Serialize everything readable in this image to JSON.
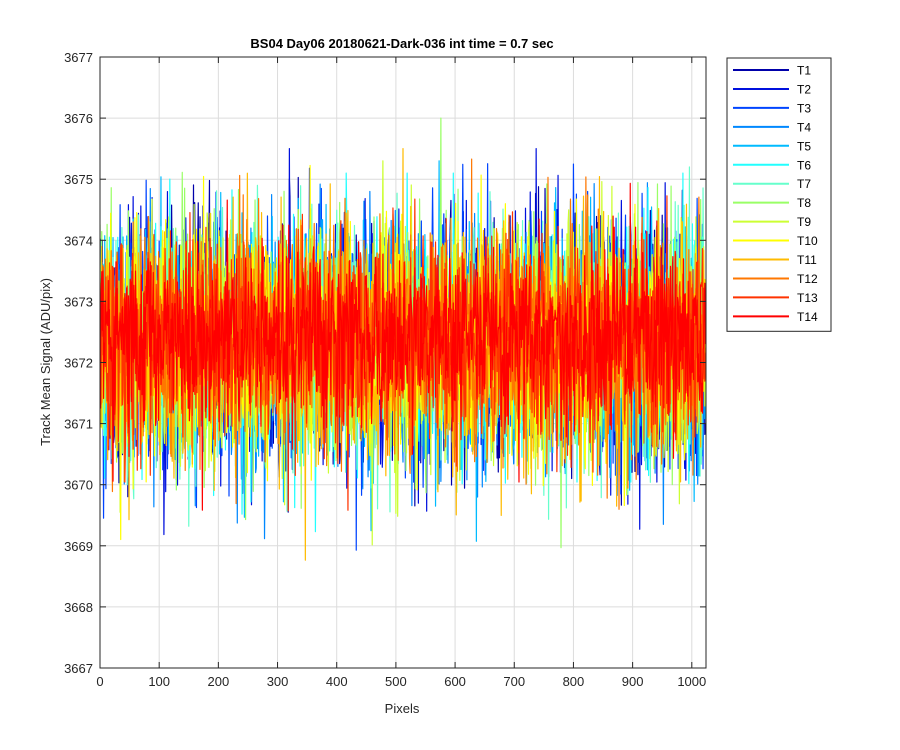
{
  "chart_data": {
    "type": "line",
    "title": "BS04 Day06 20180621-Dark-036 int time = 0.7 sec",
    "xlabel": "Pixels",
    "ylabel": "Track Mean Signal (ADU/pix)",
    "xlim": [
      0,
      1024
    ],
    "ylim": [
      3667,
      3677
    ],
    "xticks": [
      0,
      100,
      200,
      300,
      400,
      500,
      600,
      700,
      800,
      900,
      1000
    ],
    "yticks": [
      3667,
      3668,
      3669,
      3670,
      3671,
      3672,
      3673,
      3674,
      3675,
      3676,
      3677
    ],
    "grid": true,
    "legend_position": "outside-top-right",
    "n_points_per_series": 1024,
    "series": [
      {
        "name": "T1",
        "color": "#0000AA",
        "mean": 3672.3,
        "std": 1.0,
        "min": 3668.1,
        "max": 3675.6
      },
      {
        "name": "T2",
        "color": "#0010DD",
        "mean": 3672.3,
        "std": 1.0,
        "min": 3668.2,
        "max": 3675.5
      },
      {
        "name": "T3",
        "color": "#0044FF",
        "mean": 3672.3,
        "std": 1.0,
        "min": 3668.3,
        "max": 3675.4
      },
      {
        "name": "T4",
        "color": "#0088FF",
        "mean": 3672.3,
        "std": 1.0,
        "min": 3668.5,
        "max": 3675.3
      },
      {
        "name": "T5",
        "color": "#00BBFF",
        "mean": 3672.3,
        "std": 0.95,
        "min": 3668.6,
        "max": 3675.3
      },
      {
        "name": "T6",
        "color": "#22FFFF",
        "mean": 3672.3,
        "std": 0.95,
        "min": 3667.9,
        "max": 3675.1
      },
      {
        "name": "T7",
        "color": "#66FFCC",
        "mean": 3672.3,
        "std": 0.95,
        "min": 3667.9,
        "max": 3675.2
      },
      {
        "name": "T8",
        "color": "#99FF66",
        "mean": 3672.3,
        "std": 0.95,
        "min": 3668.4,
        "max": 3676.0
      },
      {
        "name": "T9",
        "color": "#CCFF33",
        "mean": 3672.3,
        "std": 0.95,
        "min": 3668.5,
        "max": 3675.3
      },
      {
        "name": "T10",
        "color": "#FFFF00",
        "mean": 3672.3,
        "std": 0.95,
        "min": 3668.9,
        "max": 3675.9
      },
      {
        "name": "T11",
        "color": "#FFBB00",
        "mean": 3672.3,
        "std": 0.95,
        "min": 3667.9,
        "max": 3675.5
      },
      {
        "name": "T12",
        "color": "#FF7700",
        "mean": 3672.3,
        "std": 0.95,
        "min": 3668.3,
        "max": 3676.05
      },
      {
        "name": "T13",
        "color": "#FF3300",
        "mean": 3672.4,
        "std": 0.85,
        "min": 3669.0,
        "max": 3675.8
      },
      {
        "name": "T14",
        "color": "#FF0000",
        "mean": 3672.4,
        "std": 0.75,
        "min": 3669.5,
        "max": 3675.8
      }
    ]
  }
}
